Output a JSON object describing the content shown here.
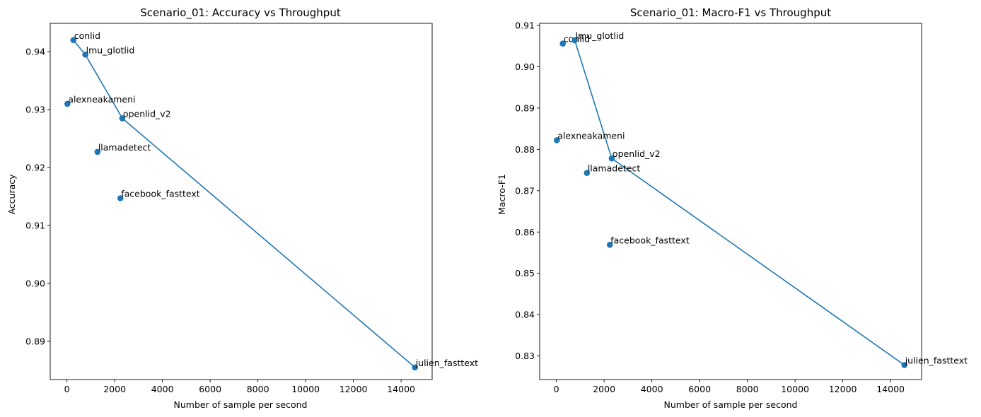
{
  "chart_data": [
    {
      "type": "scatter",
      "title": "Scenario_01: Accuracy vs Throughput",
      "xlabel": "Number of sample per second",
      "ylabel": "Accuracy",
      "xlim": [
        -700,
        15300
      ],
      "ylim": [
        0.8834,
        0.9449
      ],
      "xticks": [
        0,
        2000,
        4000,
        6000,
        8000,
        10000,
        12000,
        14000
      ],
      "yticks": [
        0.89,
        0.9,
        0.91,
        0.92,
        0.93,
        0.94
      ],
      "ytick_decimals": 2,
      "grid": false,
      "color": "#1f77b4",
      "points": [
        {
          "name": "alexneakameni",
          "x": 20,
          "y": 0.931
        },
        {
          "name": "conlid",
          "x": 270,
          "y": 0.942
        },
        {
          "name": "lmu_glotlid",
          "x": 770,
          "y": 0.9395
        },
        {
          "name": "llamadetect",
          "x": 1280,
          "y": 0.9227
        },
        {
          "name": "facebook_fasttext",
          "x": 2240,
          "y": 0.9147
        },
        {
          "name": "openlid_v2",
          "x": 2320,
          "y": 0.9285
        },
        {
          "name": "julien_fasttext",
          "x": 14580,
          "y": 0.8855
        }
      ],
      "frontier": [
        {
          "x": 270,
          "y": 0.942
        },
        {
          "x": 770,
          "y": 0.9395
        },
        {
          "x": 2320,
          "y": 0.9285
        },
        {
          "x": 14580,
          "y": 0.8855
        }
      ]
    },
    {
      "type": "scatter",
      "title": "Scenario_01: Macro-F1 vs Throughput",
      "xlabel": "Number of sample per second",
      "ylabel": "Macro-F1",
      "xlim": [
        -700,
        15300
      ],
      "ylim": [
        0.8243,
        0.9105
      ],
      "xticks": [
        0,
        2000,
        4000,
        6000,
        8000,
        10000,
        12000,
        14000
      ],
      "yticks": [
        0.83,
        0.84,
        0.85,
        0.86,
        0.87,
        0.88,
        0.89,
        0.9,
        0.91
      ],
      "ytick_decimals": 2,
      "grid": false,
      "color": "#1f77b4",
      "points": [
        {
          "name": "alexneakameni",
          "x": 20,
          "y": 0.8822
        },
        {
          "name": "conlid",
          "x": 270,
          "y": 0.9056
        },
        {
          "name": "lmu_glotlid",
          "x": 770,
          "y": 0.9064
        },
        {
          "name": "llamadetect",
          "x": 1280,
          "y": 0.8743
        },
        {
          "name": "facebook_fasttext",
          "x": 2240,
          "y": 0.8569
        },
        {
          "name": "openlid_v2",
          "x": 2320,
          "y": 0.8778
        },
        {
          "name": "julien_fasttext",
          "x": 14580,
          "y": 0.8278
        }
      ],
      "frontier": [
        {
          "x": 770,
          "y": 0.9064
        },
        {
          "x": 2320,
          "y": 0.8778
        },
        {
          "x": 14580,
          "y": 0.8278
        }
      ]
    }
  ]
}
